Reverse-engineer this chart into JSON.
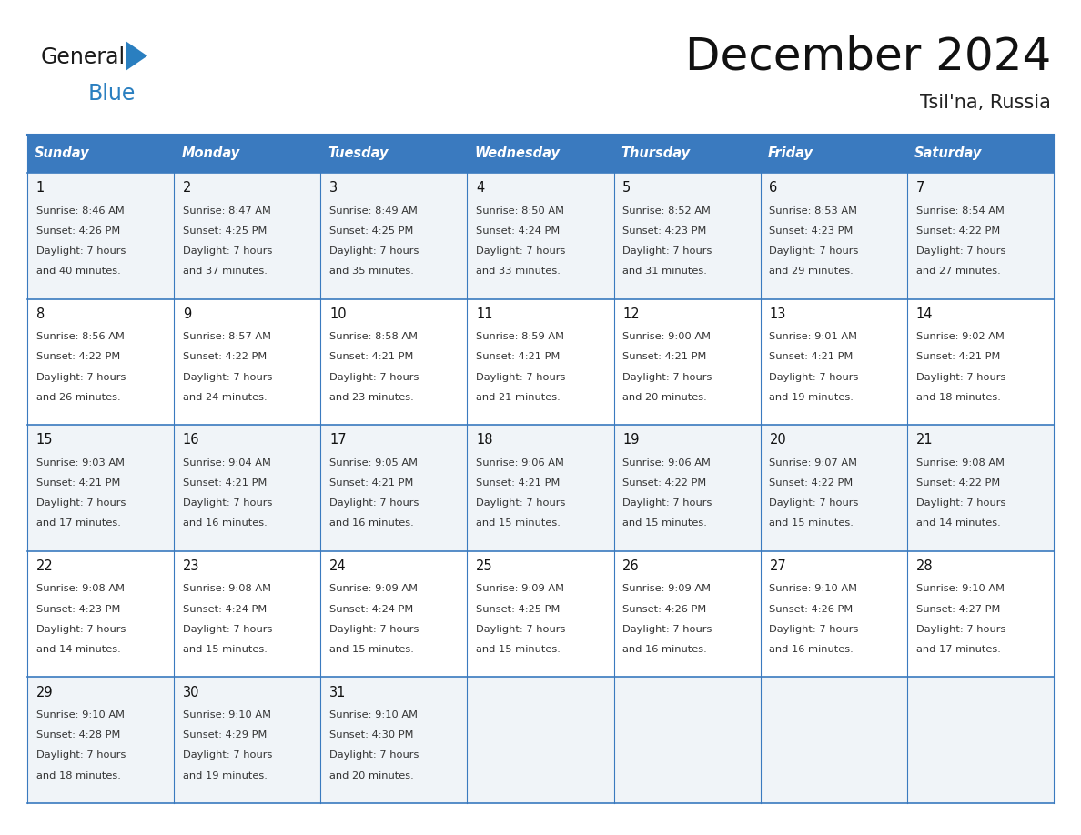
{
  "title": "December 2024",
  "subtitle": "Tsil'na, Russia",
  "header_bg": "#3a7abf",
  "header_text": "#ffffff",
  "cell_bg_odd": "#f0f4f8",
  "cell_bg_even": "#ffffff",
  "border_color": "#3a7abf",
  "inner_border_color": "#cccccc",
  "day_headers": [
    "Sunday",
    "Monday",
    "Tuesday",
    "Wednesday",
    "Thursday",
    "Friday",
    "Saturday"
  ],
  "weeks": [
    [
      {
        "day": "1",
        "sunrise": "8:46 AM",
        "sunset": "4:26 PM",
        "dl1": "Daylight: 7 hours",
        "dl2": "and 40 minutes."
      },
      {
        "day": "2",
        "sunrise": "8:47 AM",
        "sunset": "4:25 PM",
        "dl1": "Daylight: 7 hours",
        "dl2": "and 37 minutes."
      },
      {
        "day": "3",
        "sunrise": "8:49 AM",
        "sunset": "4:25 PM",
        "dl1": "Daylight: 7 hours",
        "dl2": "and 35 minutes."
      },
      {
        "day": "4",
        "sunrise": "8:50 AM",
        "sunset": "4:24 PM",
        "dl1": "Daylight: 7 hours",
        "dl2": "and 33 minutes."
      },
      {
        "day": "5",
        "sunrise": "8:52 AM",
        "sunset": "4:23 PM",
        "dl1": "Daylight: 7 hours",
        "dl2": "and 31 minutes."
      },
      {
        "day": "6",
        "sunrise": "8:53 AM",
        "sunset": "4:23 PM",
        "dl1": "Daylight: 7 hours",
        "dl2": "and 29 minutes."
      },
      {
        "day": "7",
        "sunrise": "8:54 AM",
        "sunset": "4:22 PM",
        "dl1": "Daylight: 7 hours",
        "dl2": "and 27 minutes."
      }
    ],
    [
      {
        "day": "8",
        "sunrise": "8:56 AM",
        "sunset": "4:22 PM",
        "dl1": "Daylight: 7 hours",
        "dl2": "and 26 minutes."
      },
      {
        "day": "9",
        "sunrise": "8:57 AM",
        "sunset": "4:22 PM",
        "dl1": "Daylight: 7 hours",
        "dl2": "and 24 minutes."
      },
      {
        "day": "10",
        "sunrise": "8:58 AM",
        "sunset": "4:21 PM",
        "dl1": "Daylight: 7 hours",
        "dl2": "and 23 minutes."
      },
      {
        "day": "11",
        "sunrise": "8:59 AM",
        "sunset": "4:21 PM",
        "dl1": "Daylight: 7 hours",
        "dl2": "and 21 minutes."
      },
      {
        "day": "12",
        "sunrise": "9:00 AM",
        "sunset": "4:21 PM",
        "dl1": "Daylight: 7 hours",
        "dl2": "and 20 minutes."
      },
      {
        "day": "13",
        "sunrise": "9:01 AM",
        "sunset": "4:21 PM",
        "dl1": "Daylight: 7 hours",
        "dl2": "and 19 minutes."
      },
      {
        "day": "14",
        "sunrise": "9:02 AM",
        "sunset": "4:21 PM",
        "dl1": "Daylight: 7 hours",
        "dl2": "and 18 minutes."
      }
    ],
    [
      {
        "day": "15",
        "sunrise": "9:03 AM",
        "sunset": "4:21 PM",
        "dl1": "Daylight: 7 hours",
        "dl2": "and 17 minutes."
      },
      {
        "day": "16",
        "sunrise": "9:04 AM",
        "sunset": "4:21 PM",
        "dl1": "Daylight: 7 hours",
        "dl2": "and 16 minutes."
      },
      {
        "day": "17",
        "sunrise": "9:05 AM",
        "sunset": "4:21 PM",
        "dl1": "Daylight: 7 hours",
        "dl2": "and 16 minutes."
      },
      {
        "day": "18",
        "sunrise": "9:06 AM",
        "sunset": "4:21 PM",
        "dl1": "Daylight: 7 hours",
        "dl2": "and 15 minutes."
      },
      {
        "day": "19",
        "sunrise": "9:06 AM",
        "sunset": "4:22 PM",
        "dl1": "Daylight: 7 hours",
        "dl2": "and 15 minutes."
      },
      {
        "day": "20",
        "sunrise": "9:07 AM",
        "sunset": "4:22 PM",
        "dl1": "Daylight: 7 hours",
        "dl2": "and 15 minutes."
      },
      {
        "day": "21",
        "sunrise": "9:08 AM",
        "sunset": "4:22 PM",
        "dl1": "Daylight: 7 hours",
        "dl2": "and 14 minutes."
      }
    ],
    [
      {
        "day": "22",
        "sunrise": "9:08 AM",
        "sunset": "4:23 PM",
        "dl1": "Daylight: 7 hours",
        "dl2": "and 14 minutes."
      },
      {
        "day": "23",
        "sunrise": "9:08 AM",
        "sunset": "4:24 PM",
        "dl1": "Daylight: 7 hours",
        "dl2": "and 15 minutes."
      },
      {
        "day": "24",
        "sunrise": "9:09 AM",
        "sunset": "4:24 PM",
        "dl1": "Daylight: 7 hours",
        "dl2": "and 15 minutes."
      },
      {
        "day": "25",
        "sunrise": "9:09 AM",
        "sunset": "4:25 PM",
        "dl1": "Daylight: 7 hours",
        "dl2": "and 15 minutes."
      },
      {
        "day": "26",
        "sunrise": "9:09 AM",
        "sunset": "4:26 PM",
        "dl1": "Daylight: 7 hours",
        "dl2": "and 16 minutes."
      },
      {
        "day": "27",
        "sunrise": "9:10 AM",
        "sunset": "4:26 PM",
        "dl1": "Daylight: 7 hours",
        "dl2": "and 16 minutes."
      },
      {
        "day": "28",
        "sunrise": "9:10 AM",
        "sunset": "4:27 PM",
        "dl1": "Daylight: 7 hours",
        "dl2": "and 17 minutes."
      }
    ],
    [
      {
        "day": "29",
        "sunrise": "9:10 AM",
        "sunset": "4:28 PM",
        "dl1": "Daylight: 7 hours",
        "dl2": "and 18 minutes."
      },
      {
        "day": "30",
        "sunrise": "9:10 AM",
        "sunset": "4:29 PM",
        "dl1": "Daylight: 7 hours",
        "dl2": "and 19 minutes."
      },
      {
        "day": "31",
        "sunrise": "9:10 AM",
        "sunset": "4:30 PM",
        "dl1": "Daylight: 7 hours",
        "dl2": "and 20 minutes."
      },
      null,
      null,
      null,
      null
    ]
  ],
  "logo_general_color": "#1a1a1a",
  "logo_blue_color": "#2a7fc0",
  "logo_triangle_color": "#2a7fc0"
}
